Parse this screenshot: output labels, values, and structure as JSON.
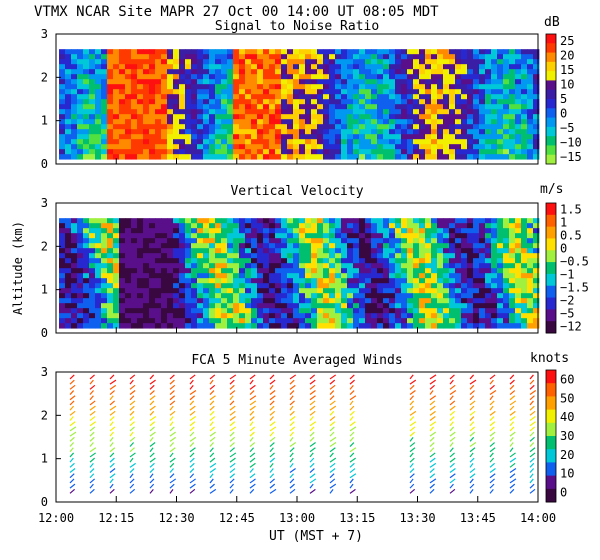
{
  "header": {
    "title": "VTMX  NCAR Site  MAPR 27 Oct 00  14:00 UT  08:05  MDT"
  },
  "chart_data": [
    {
      "type": "heatmap",
      "title": "Signal to Noise Ratio",
      "unit": "dB",
      "ylabel": "",
      "ylim": [
        0,
        3
      ],
      "yticks": [
        "0",
        "1",
        "2",
        "3"
      ],
      "colorbar_labels": [
        "25",
        "20",
        "15",
        "10",
        "5",
        "0",
        "−5",
        "−10",
        "−15"
      ],
      "colorbar_colors": [
        "#ff1010",
        "#ff3a00",
        "#ff8a00",
        "#ffd000",
        "#f0f000",
        "#5a0f8a",
        "#3a1ea6",
        "#2828d0",
        "#1060f0",
        "#0098f0",
        "#00c8d8",
        "#00c070",
        "#50e040",
        "#a0f040"
      ]
    },
    {
      "type": "heatmap",
      "title": "Vertical Velocity",
      "unit": "m/s",
      "ylabel": "Altitude (km)",
      "ylim": [
        0,
        3
      ],
      "yticks": [
        "0",
        "1",
        "2",
        "3"
      ],
      "colorbar_labels": [
        "1.5",
        "1",
        "0.5",
        "0",
        "−0.5",
        "−1",
        "−1.5",
        "−2",
        "−5",
        "−12"
      ],
      "colorbar_colors": [
        "#ff1010",
        "#ff6000",
        "#ffa000",
        "#ffe000",
        "#a0f040",
        "#00c070",
        "#00c8d8",
        "#1060f0",
        "#2828d0",
        "#5a0f8a",
        "#3a0840"
      ]
    },
    {
      "type": "scatter",
      "title": "FCA 5 Minute Averaged Winds",
      "unit": "knots",
      "ylabel": "",
      "ylim": [
        0,
        3
      ],
      "yticks": [
        "0",
        "1",
        "2",
        "3"
      ],
      "colorbar_labels": [
        "60",
        "50",
        "40",
        "30",
        "20",
        "10",
        "0"
      ],
      "colorbar_colors": [
        "#ff1010",
        "#ff6000",
        "#ffa000",
        "#f0f000",
        "#a0f040",
        "#00c070",
        "#00c8d8",
        "#1060f0",
        "#5a0f8a",
        "#3a0840"
      ]
    }
  ],
  "xaxis": {
    "tick_labels": [
      "12:00",
      "12:15",
      "12:30",
      "12:45",
      "13:00",
      "13:15",
      "13:30",
      "13:45",
      "14:00"
    ],
    "label": "UT  (MST + 7)"
  }
}
